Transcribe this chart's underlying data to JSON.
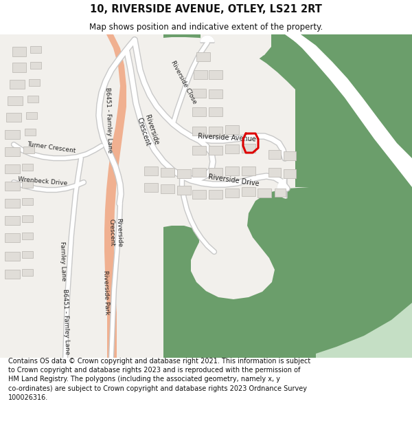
{
  "title": "10, RIVERSIDE AVENUE, OTLEY, LS21 2RT",
  "subtitle": "Map shows position and indicative extent of the property.",
  "footer_lines": [
    "Contains OS data © Crown copyright and database right 2021. This information is subject to Crown copyright and database rights 2023 and is reproduced with the permission of",
    "HM Land Registry. The polygons (including the associated geometry, namely x, y co-ordinates) are subject to Crown copyright and database rights 2023 Ordnance Survey",
    "100026316."
  ],
  "map_bg": "#f2f0ec",
  "green_dark": "#6b9e6b",
  "green_light": "#c5dfc5",
  "road_pink": "#f0b090",
  "road_white": "#ffffff",
  "road_outline": "#bbbbbb",
  "building_fill": "#e0ddd8",
  "building_edge": "#c0bdb8",
  "plot_red": "#dd0000",
  "title_fontsize": 10.5,
  "subtitle_fontsize": 8.5,
  "footer_fontsize": 7.0
}
